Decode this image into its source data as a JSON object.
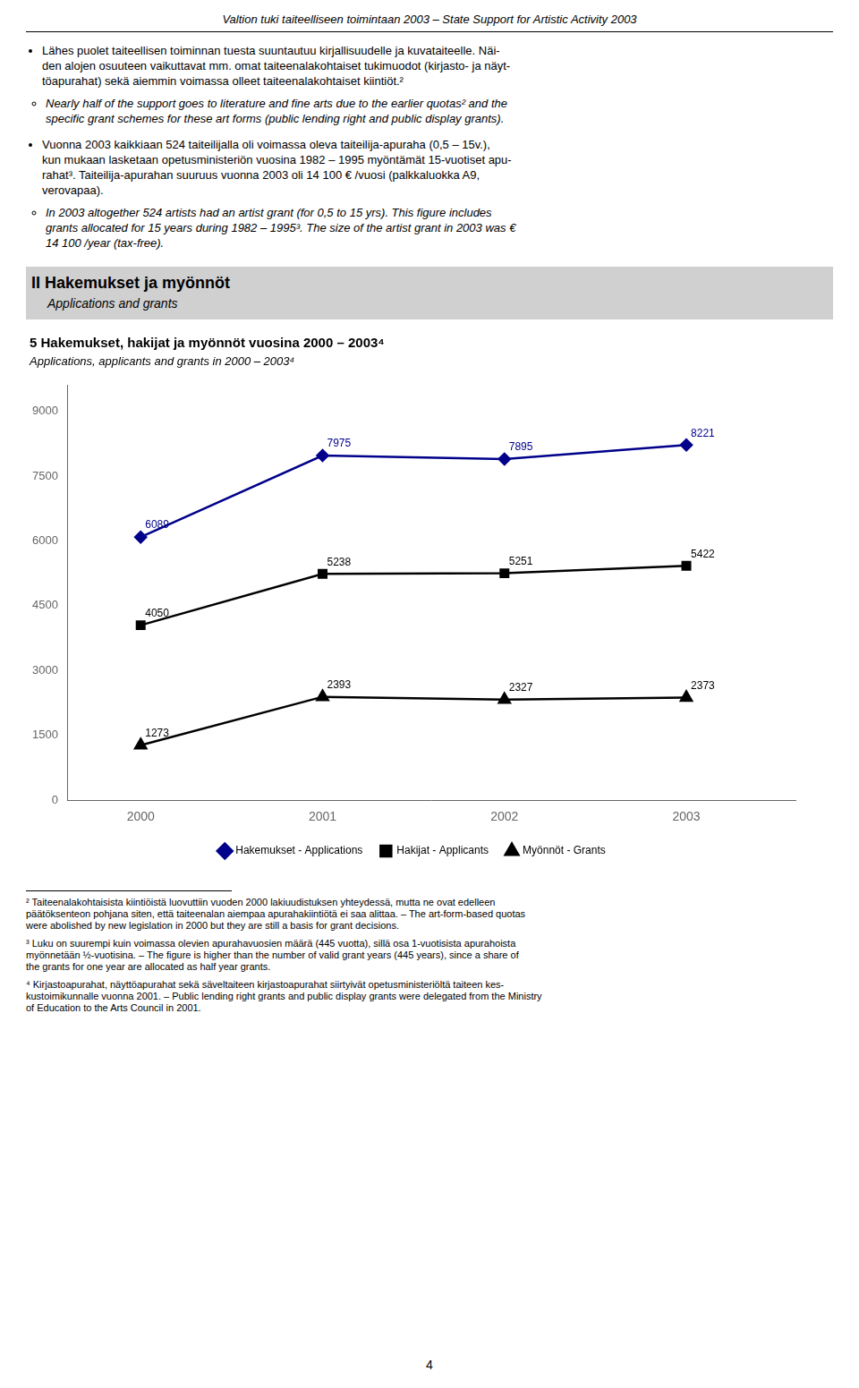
{
  "page": {
    "header": "Valtion tuki taiteelliseen toimintaan 2003 – State Support for Artistic Activity 2003",
    "bullets": [
      {
        "fi": [
          "Lähes puolet taiteellisen toiminnan tuesta suuntautuu kirjallisuudelle ja kuvataiteelle. Näi-",
          "den alojen osuuteen vaikuttavat mm. omat taiteenalakohtaiset tukimuodot (kirjasto- ja näyt-",
          "töapurahat) sekä aiemmin voimassa olleet taiteenalakohtaiset kiintiöt.²"
        ],
        "en": [
          "Nearly half of the support goes to literature and fine arts due to the earlier quotas² and the",
          "specific grant schemes for these art forms (public lending right and public display grants)."
        ]
      },
      {
        "fi": [
          "Vuonna 2003 kaikkiaan 524 taiteilijalla oli voimassa oleva taiteilija-apuraha (0,5 – 15v.),",
          "kun mukaan lasketaan opetusministeriön vuosina 1982 – 1995 myöntämät 15-vuotiset apu-",
          "rahat³. Taiteilija-apurahan suuruus vuonna 2003 oli 14 100 € /vuosi (palkkaluokka A9,",
          "verovapaa)."
        ],
        "en": [
          "In 2003 altogether 524 artists had an artist grant (for 0,5 to 15 yrs). This figure includes",
          "grants allocated for 15 years during 1982 – 1995³. The size of the artist grant in 2003 was €",
          "14 100 /year (tax-free)."
        ]
      }
    ],
    "section_header": "II Hakemukset ja myönnöt",
    "section_subheader": "Applications and grants",
    "footnotes": [
      [
        "² Taiteenalakohtaisista kiintiöistä luovuttiin vuoden 2000 lakiuudistuksen yhteydessä, mutta ne ovat edelleen",
        "päätöksenteon pohjana siten, että taiteenalan aiempaa apurahakiintiötä ei saa alittaa. – The art-form-based quotas",
        "were abolished by new legislation in 2000 but they are still a basis for grant decisions."
      ],
      [
        "³ Luku on suurempi kuin voimassa olevien apurahavuosien määrä (445 vuotta), sillä osa 1-vuotisista apurahoista",
        "myönnetään ½-vuotisina. – The figure is higher than the number of valid grant years (445 years), since a share of",
        "the grants for one year are allocated as half year grants."
      ],
      [
        "⁴ Kirjastoapurahat, näyttöapurahat sekä säveltaiteen kirjastoapurahat siirtyivät opetusministeriöltä taiteen kes-",
        "kustoimikunnalle vuonna 2001. – Public lending right grants and public display grants were delegated from the Ministry",
        "of Education to the Arts Council in 2001."
      ]
    ],
    "page_number": "4"
  },
  "chart_data": {
    "type": "line",
    "title": "5 Hakemukset, hakijat ja myönnöt vuosina 2000 – 2003⁴",
    "subtitle": "Applications, applicants and grants in 2000 – 2003⁴",
    "x": [
      2000,
      2001,
      2002,
      2003
    ],
    "series": [
      {
        "name": "Hakemukset - Applications",
        "color": "#00008B",
        "marker": "diamond",
        "line_style": "solid",
        "values": [
          6089,
          7975,
          7895,
          8221
        ]
      },
      {
        "name": "Hakijat - Applicants",
        "color": "#000000",
        "marker": "square",
        "line_style": "solid",
        "values": [
          4050,
          5238,
          5251,
          5422
        ]
      },
      {
        "name": "Myönnöt - Grants",
        "color": "#000000",
        "marker": "triangle",
        "line_style": "solid",
        "values": [
          1273,
          2393,
          2327,
          2373
        ]
      }
    ],
    "xlim": [
      1999.6,
      2003.6
    ],
    "xticks": [
      2000,
      2001,
      2002,
      2003
    ],
    "ylim": [
      0,
      9600
    ],
    "yticks": [
      0,
      1500,
      3000,
      4500,
      6000,
      7500,
      9000
    ],
    "grid": false,
    "legend": "bottom",
    "data_labels": true
  }
}
